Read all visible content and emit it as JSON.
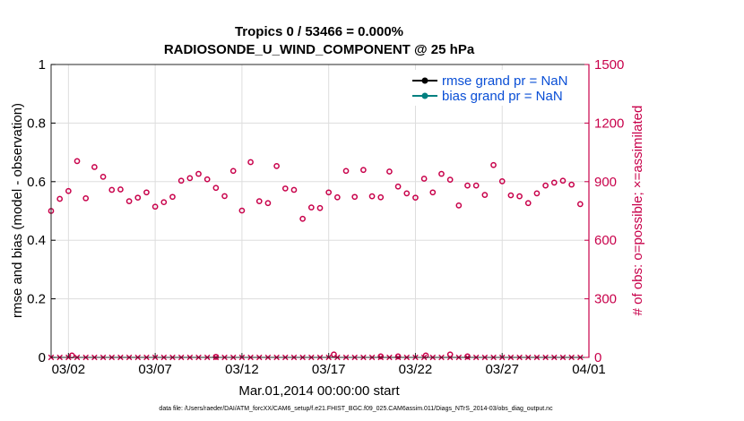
{
  "colors": {
    "left_axis": "#000000",
    "right_axis": "#c8004a",
    "rmse_line": "#000000",
    "bias_line": "#008080",
    "legend_text": "#0a4fd6",
    "grid": "#dddddd"
  },
  "chart_data": {
    "type": "scatter",
    "title": "Tropics 0 / 53466 = 0.000%",
    "subtitle": "RADIOSONDE_U_WIND_COMPONENT @ 25 hPa",
    "xlabel": "Mar.01,2014 00:00:00 start",
    "ylabel_left": "rmse and bias (model - observation)",
    "ylabel_right": "# of obs: o=possible; ×=assimilated",
    "xlim": [
      1,
      32
    ],
    "ylim_left": [
      0,
      1
    ],
    "ylim_right": [
      0,
      1500
    ],
    "x_ticks": [
      {
        "value": 2,
        "label": "03/02"
      },
      {
        "value": 7,
        "label": "03/07"
      },
      {
        "value": 12,
        "label": "03/12"
      },
      {
        "value": 17,
        "label": "03/17"
      },
      {
        "value": 22,
        "label": "03/22"
      },
      {
        "value": 27,
        "label": "03/27"
      },
      {
        "value": 32,
        "label": "04/01"
      }
    ],
    "y_left_ticks": [
      "0",
      "0.2",
      "0.4",
      "0.6",
      "0.8",
      "1"
    ],
    "y_left_tick_values": [
      0,
      0.2,
      0.4,
      0.6,
      0.8,
      1
    ],
    "y_right_ticks": [
      "0",
      "300",
      "600",
      "900",
      "1200",
      "1500"
    ],
    "y_right_tick_values": [
      0,
      300,
      600,
      900,
      1200,
      1500
    ],
    "grid": true,
    "legend": {
      "placement": "top-right",
      "entries": [
        {
          "label": "rmse grand pr = NaN",
          "color": "#000000"
        },
        {
          "label": "bias grand pr = NaN",
          "color": "#008080"
        }
      ]
    },
    "series": [
      {
        "name": "possible",
        "marker": "circle",
        "axis": "right",
        "x": [
          1.0,
          1.5,
          2.0,
          2.5,
          3.0,
          3.5,
          4.0,
          4.5,
          5.0,
          5.5,
          6.0,
          6.5,
          7.0,
          7.5,
          8.0,
          8.5,
          9.0,
          9.5,
          10.0,
          10.5,
          11.0,
          11.5,
          12.0,
          12.5,
          13.0,
          13.5,
          14.0,
          14.5,
          15.0,
          15.5,
          16.0,
          16.5,
          17.0,
          17.5,
          18.0,
          18.5,
          19.0,
          19.5,
          20.0,
          20.5,
          21.0,
          21.5,
          22.0,
          22.5,
          23.0,
          23.5,
          24.0,
          24.5,
          25.0,
          25.5,
          26.0,
          26.5,
          27.0,
          27.5,
          28.0,
          28.5,
          29.0,
          29.5,
          30.0,
          30.5,
          31.0,
          31.5
        ],
        "values": [
          750,
          812,
          852,
          1005,
          815,
          975,
          925,
          858,
          860,
          800,
          818,
          845,
          772,
          795,
          822,
          905,
          918,
          940,
          912,
          868,
          826,
          955,
          752,
          1000,
          800,
          790,
          980,
          865,
          858,
          710,
          768,
          765,
          845,
          820,
          955,
          822,
          960,
          825,
          820,
          952,
          875,
          840,
          818,
          915,
          845,
          940,
          910,
          778,
          880,
          880,
          832,
          985,
          902,
          830,
          825,
          790,
          840,
          880,
          895,
          905,
          885,
          785
        ]
      },
      {
        "name": "assimilated",
        "marker": "x",
        "axis": "right",
        "x": [
          1.0,
          1.5,
          2.0,
          2.5,
          3.0,
          3.5,
          4.0,
          4.5,
          5.0,
          5.5,
          6.0,
          6.5,
          7.0,
          7.5,
          8.0,
          8.5,
          9.0,
          9.5,
          10.0,
          10.5,
          11.0,
          11.5,
          12.0,
          12.5,
          13.0,
          13.5,
          14.0,
          14.5,
          15.0,
          15.5,
          16.0,
          16.5,
          17.0,
          17.5,
          18.0,
          18.5,
          19.0,
          19.5,
          20.0,
          20.5,
          21.0,
          21.5,
          22.0,
          22.5,
          23.0,
          23.5,
          24.0,
          24.5,
          25.0,
          25.5,
          26.0,
          26.5,
          27.0,
          27.5,
          28.0,
          28.5,
          29.0,
          29.5,
          30.0,
          30.5,
          31.0,
          31.5
        ],
        "values": [
          0,
          0,
          0,
          0,
          0,
          0,
          0,
          0,
          0,
          0,
          0,
          0,
          0,
          0,
          0,
          0,
          0,
          0,
          0,
          0,
          0,
          0,
          0,
          0,
          0,
          0,
          0,
          0,
          0,
          0,
          0,
          0,
          0,
          0,
          0,
          0,
          0,
          0,
          0,
          0,
          0,
          0,
          0,
          0,
          0,
          0,
          0,
          0,
          0,
          0,
          0,
          0,
          0,
          0,
          0,
          0,
          0,
          0,
          0,
          0,
          0,
          0
        ]
      },
      {
        "name": "possible (secondary samples)",
        "marker": "circle",
        "axis": "right",
        "x": [
          2.2,
          10.5,
          17.3,
          20.0,
          21.0,
          22.6,
          24.0,
          25.0
        ],
        "values": [
          10,
          3,
          15,
          5,
          5,
          10,
          15,
          5
        ]
      }
    ]
  },
  "footer": {
    "data_file": "data file: /Users/raeder/DAI/ATM_forcXX/CAM6_setup/f.e21.FHIST_BGC.f09_025.CAM6assim.011/Diags_NTrS_2014-03/obs_diag_output.nc"
  }
}
